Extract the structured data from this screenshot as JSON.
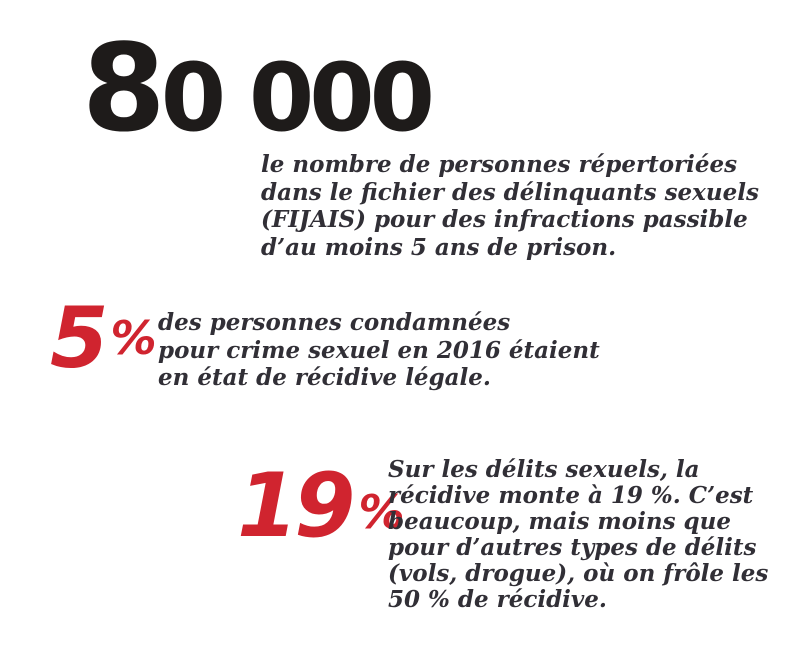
{
  "colors": {
    "accent_red": "#d0242f",
    "headline_black": "#1e1b1a",
    "body_text": "#312f36",
    "background": "#ffffff"
  },
  "stats": [
    {
      "id": "fijais-count",
      "value": "80 000",
      "unit": "",
      "lines": [
        "le nombre de personnes répertoriées",
        "dans le fichier des délinquants sexuels",
        "(FIJAIS) pour des infractions passible",
        "d’au moins 5 ans de prison."
      ]
    },
    {
      "id": "recidive-crimes-sexuels",
      "value": "5",
      "unit": "%",
      "lines": [
        "des personnes condamnées",
        "pour crime sexuel en 2016 étaient",
        "en état de récidive légale."
      ]
    },
    {
      "id": "recidive-delits-sexuels",
      "value": "19",
      "unit": "%",
      "lines": [
        "Sur les délits sexuels, la",
        "récidive monte à 19 %. C’est",
        "beaucoup, mais moins que",
        "pour d’autres types de délits",
        "(vols, drogue), où on frôle les",
        "50 % de récidive."
      ]
    }
  ]
}
